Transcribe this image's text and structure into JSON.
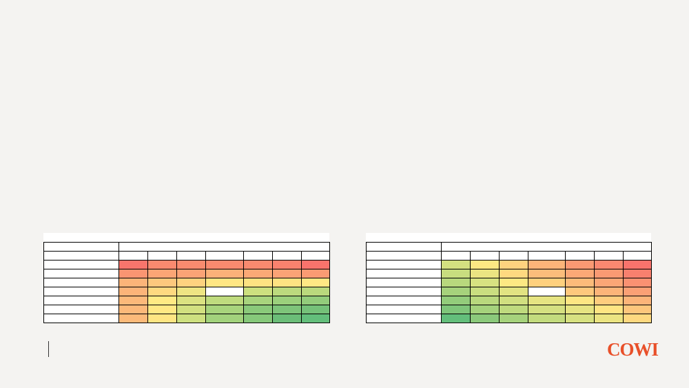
{
  "logo": "COWI",
  "tables": [
    {
      "cells": [
        [
          "#f8756c",
          "#f98a6f",
          "#f98b6f",
          "#f98a6f",
          "#f98a6f",
          "#f9826e",
          "#f8736c"
        ],
        [
          "#fa9572",
          "#fba575",
          "#fba376",
          "#fcb179",
          "#fba976",
          "#fba376",
          "#fa9b73"
        ],
        [
          "#fcb479",
          "#fdc87d",
          "#fed27f",
          "#ffe684",
          "#fee282",
          "#fee382",
          "#ffe884"
        ],
        [
          "#fcb479",
          "#fed980",
          "#eee583",
          "#ffffff",
          "#cde07f",
          "#bcda7e",
          "#bad97d"
        ],
        [
          "#fcb97a",
          "#ffea84",
          "#dbe281",
          "#bfdb7e",
          "#a8d47d",
          "#9bd07c",
          "#93cc7b"
        ],
        [
          "#fcb97a",
          "#ffe884",
          "#d2e080",
          "#a8d47c",
          "#8ac97a",
          "#7ec47a",
          "#75c179"
        ],
        [
          "#fcba7a",
          "#fee583",
          "#cee080",
          "#a2d27c",
          "#86c87a",
          "#6bbd78",
          "#63be7b"
        ]
      ]
    },
    {
      "cells": [
        [
          "#d3e080",
          "#fce883",
          "#fed27f",
          "#fcb479",
          "#fa9973",
          "#f98870",
          "#f8736c"
        ],
        [
          "#c8dd7f",
          "#ebe482",
          "#fed980",
          "#fcbd7b",
          "#fba876",
          "#fa9a73",
          "#f8806e"
        ],
        [
          "#b8d87d",
          "#d7e281",
          "#fde883",
          "#fed07e",
          "#fcbb7a",
          "#fba676",
          "#fa9172"
        ],
        [
          "#a6d27c",
          "#cade80",
          "#e2e382",
          "#ffffff",
          "#fec87d",
          "#fcb479",
          "#fba075"
        ],
        [
          "#93cc7b",
          "#b9d87d",
          "#d1df80",
          "#e6e482",
          "#fde683",
          "#fecd7e",
          "#fcb479"
        ],
        [
          "#7fc57a",
          "#a5d27c",
          "#bfda7e",
          "#d5e081",
          "#e6e482",
          "#fee583",
          "#fdc67c"
        ],
        [
          "#63be7b",
          "#8bc97b",
          "#a6d27c",
          "#c3db7e",
          "#d7e181",
          "#ebe482",
          "#fed880"
        ]
      ]
    }
  ]
}
